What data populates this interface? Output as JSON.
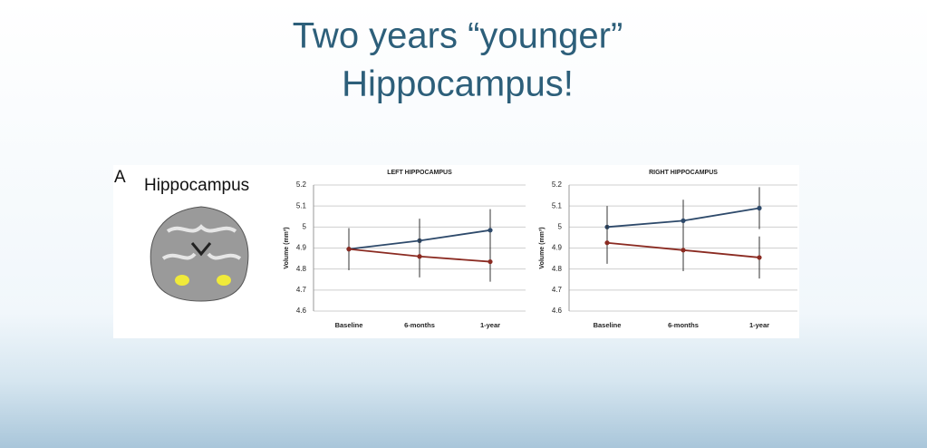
{
  "title": [
    "Two years “younger”",
    "Hippocampus!"
  ],
  "panel": {
    "letter": "A",
    "label": "Hippocampus"
  },
  "chart_data": [
    {
      "type": "line",
      "title": "LEFT HIPPOCAMPUS",
      "y_label": "Volume (mm³)",
      "categories": [
        "Baseline",
        "6-months",
        "1-year"
      ],
      "series": [
        {
          "color": "#2e4a6b",
          "values": [
            4.895,
            4.935,
            4.985
          ],
          "errors": [
            0.1,
            0.105,
            0.1
          ]
        },
        {
          "color": "#8b2b22",
          "values": [
            4.895,
            4.86,
            4.835
          ],
          "errors": [
            0.1,
            0.1,
            0.095
          ]
        }
      ],
      "ylim": [
        4.6,
        5.2
      ],
      "yticks": [
        4.6,
        4.7,
        4.8,
        4.9,
        5,
        5.1,
        5.2
      ],
      "grid": true
    },
    {
      "type": "line",
      "title": "RIGHT HIPPOCAMPUS",
      "y_label": "Volume (mm³)",
      "categories": [
        "Baseline",
        "6-months",
        "1-year"
      ],
      "series": [
        {
          "color": "#2e4a6b",
          "values": [
            5.0,
            5.03,
            5.09
          ],
          "errors": [
            0.1,
            0.1,
            0.1
          ]
        },
        {
          "color": "#8b2b22",
          "values": [
            4.925,
            4.89,
            4.855
          ],
          "errors": [
            0.1,
            0.1,
            0.1
          ]
        }
      ],
      "ylim": [
        4.6,
        5.2
      ],
      "yticks": [
        4.6,
        4.7,
        4.8,
        4.9,
        5,
        5.1,
        5.2
      ],
      "grid": true
    }
  ]
}
